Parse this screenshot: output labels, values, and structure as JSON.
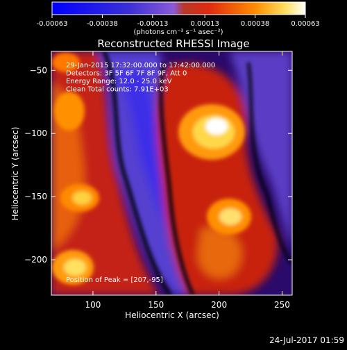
{
  "colorbar": {
    "tick_labels": [
      "-0.00063",
      "-0.00038",
      "-0.00013",
      "0.00013",
      "0.00038",
      "0.00063"
    ],
    "unit_label": "(photons cm⁻² s⁻¹ asec⁻²)",
    "range": [
      -0.00063,
      0.00063
    ],
    "colors": [
      "#0000ff",
      "#4a2fd0",
      "#8b5ad8",
      "#c83a26",
      "#ff8800",
      "#ffffff"
    ]
  },
  "chart_data": {
    "type": "heatmap",
    "title": "Reconstructed RHESSI Image",
    "xlabel": "Heliocentric X (arcsec)",
    "ylabel": "Heliocentric Y (arcsec)",
    "xlim": [
      67,
      258
    ],
    "ylim": [
      -228,
      -35
    ],
    "xticks": [
      100,
      150,
      200,
      250
    ],
    "yticks": [
      -50,
      -100,
      -150,
      -200
    ],
    "info_lines": [
      "29-Jan-2015 17:32:00.000 to 17:42:00.000",
      "Detectors: 3F 5F 6F 7F 8F 9F, Att 0",
      "Energy Range: 12.0 - 25.0 keV",
      "Clean     Total counts: 7.91E+03"
    ],
    "peak_label": "Position of Peak = [207,-95]",
    "peak": [
      207,
      -95
    ]
  },
  "footer": {
    "date": "24-Jul-2017 01:59"
  }
}
